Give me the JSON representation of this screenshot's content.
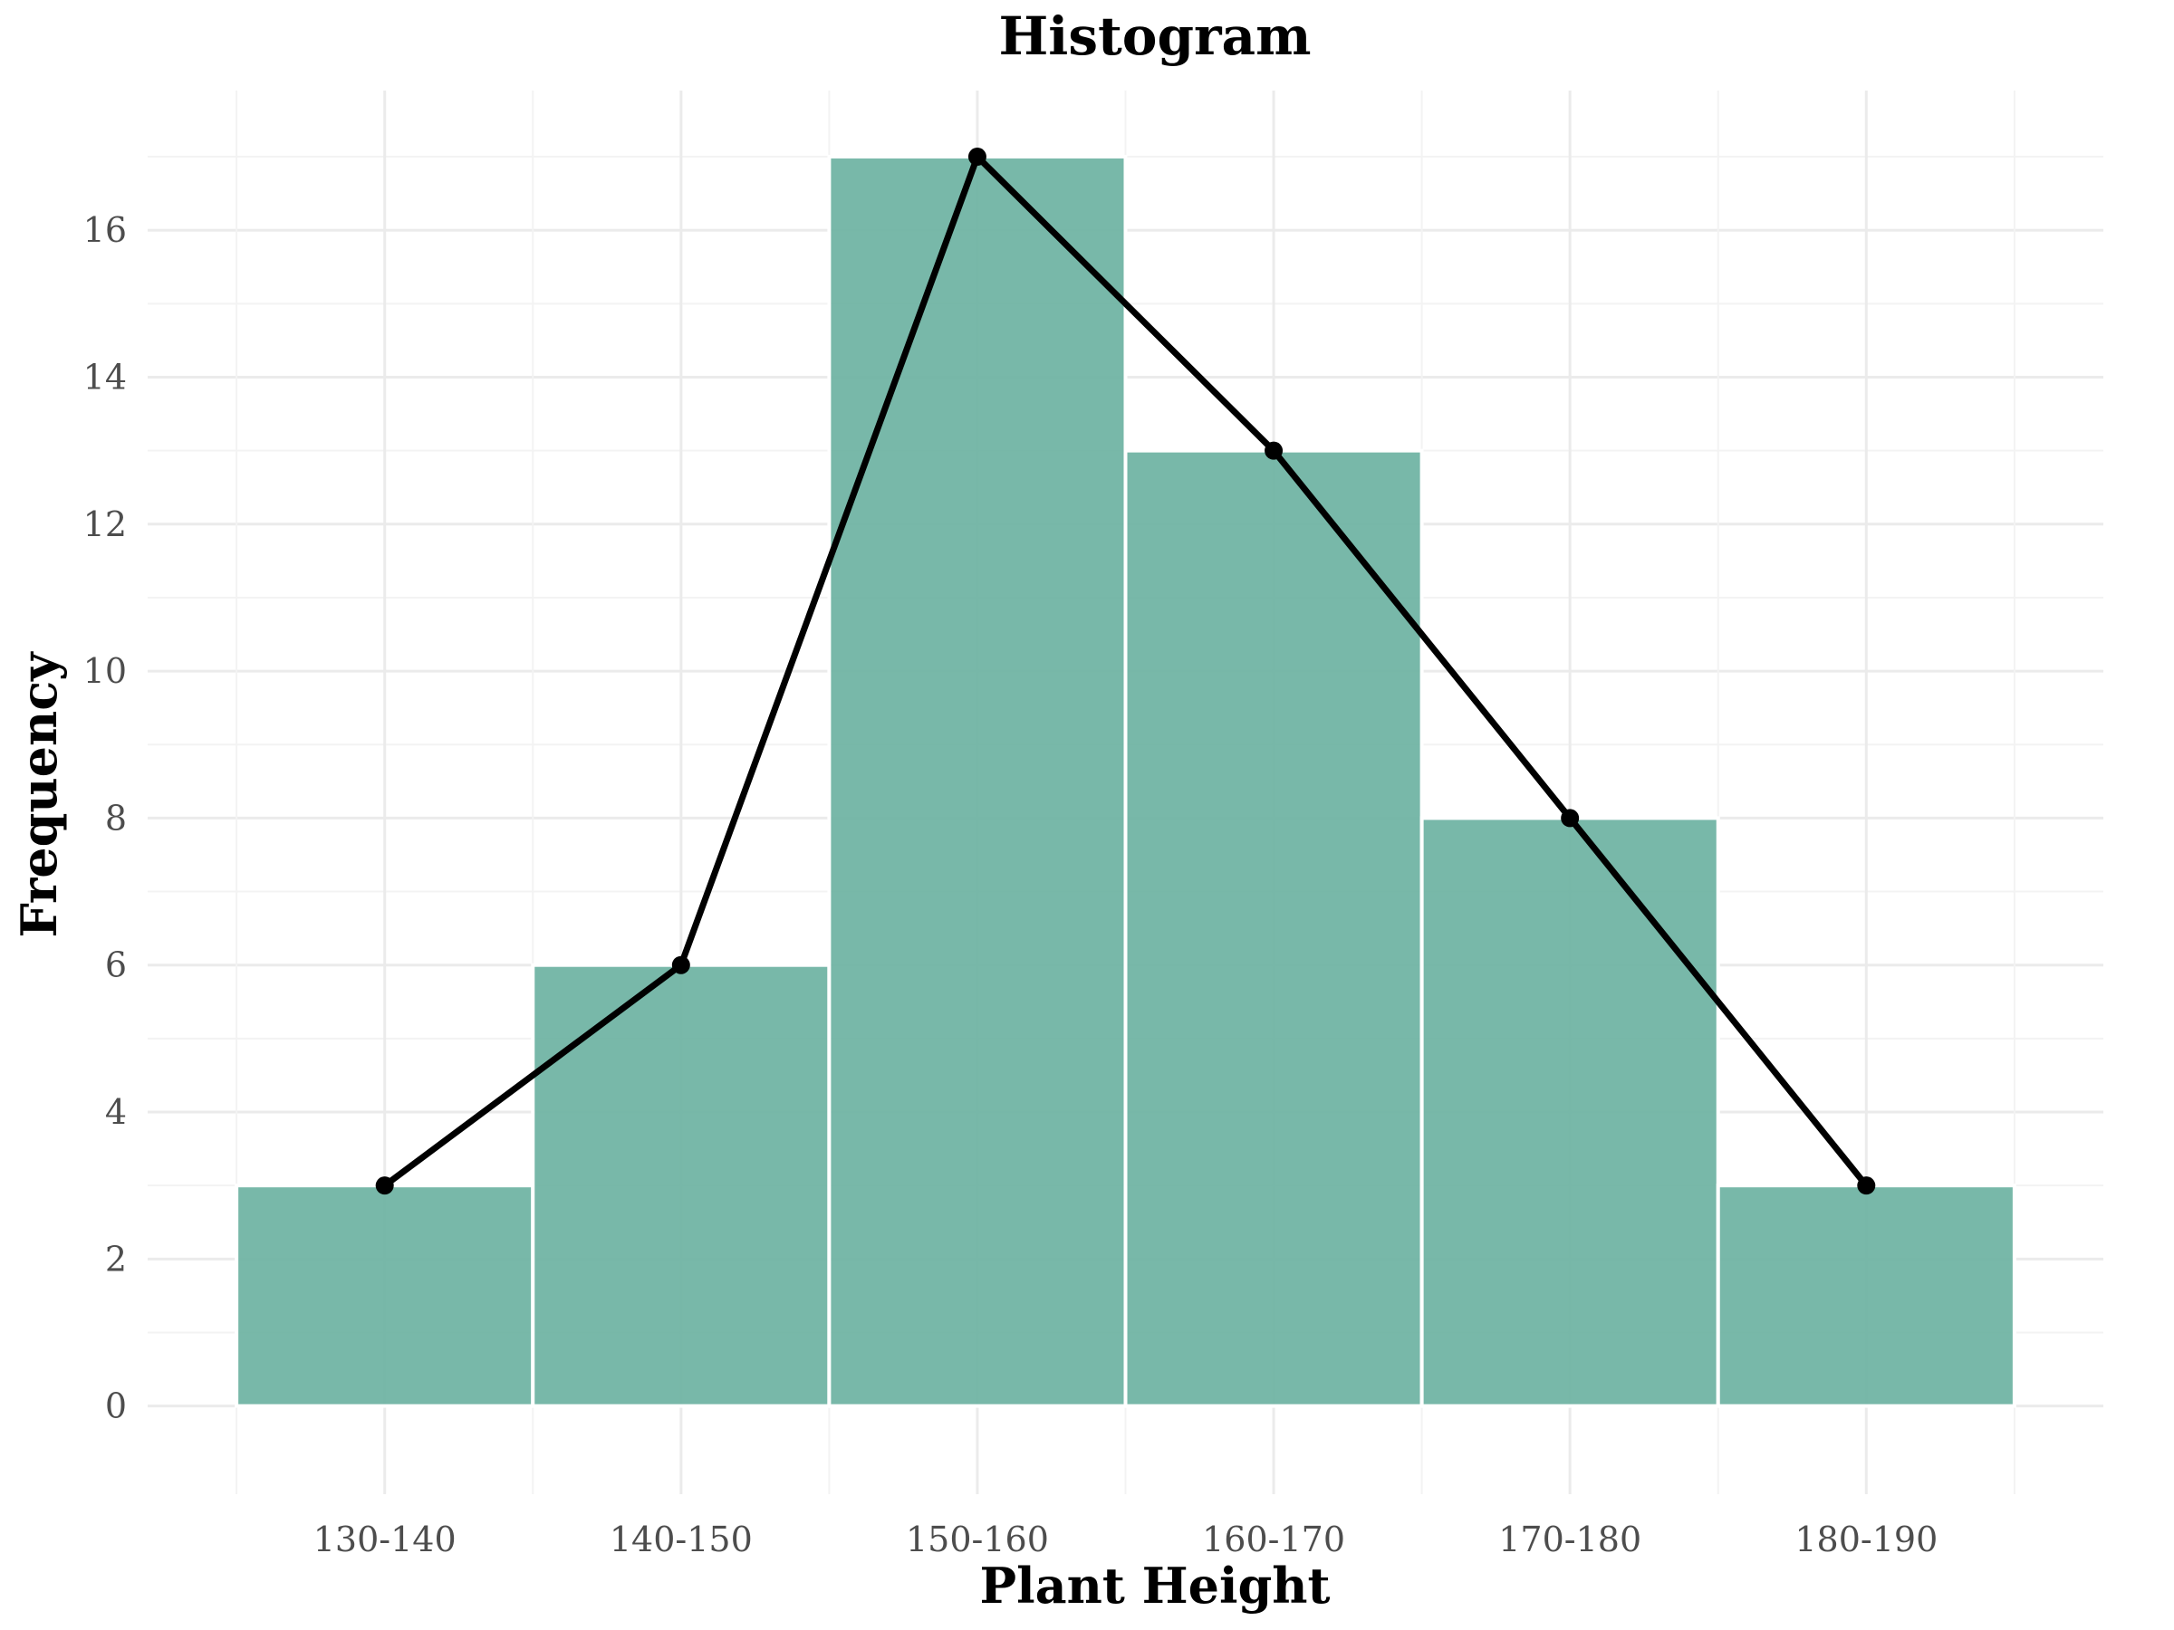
{
  "chart_data": {
    "type": "bar",
    "title": "Histogram",
    "xlabel": "Plant Height",
    "ylabel": "Frequency",
    "categories": [
      "130-140",
      "140-150",
      "150-160",
      "160-170",
      "170-180",
      "180-190"
    ],
    "values": [
      3,
      6,
      17,
      13,
      8,
      3
    ],
    "overlay": {
      "type": "line",
      "values": [
        3,
        6,
        17,
        13,
        8,
        3
      ],
      "markers": true
    },
    "ylim": [
      -1.2,
      17.9
    ],
    "yticks": [
      0,
      2,
      4,
      6,
      8,
      10,
      12,
      14,
      16
    ],
    "grid": true,
    "legend": "none",
    "colors": {
      "bar_fill": "#6cb2a2",
      "bar_border": "#ffffff",
      "line": "#000000",
      "grid": "#ebebeb"
    }
  }
}
